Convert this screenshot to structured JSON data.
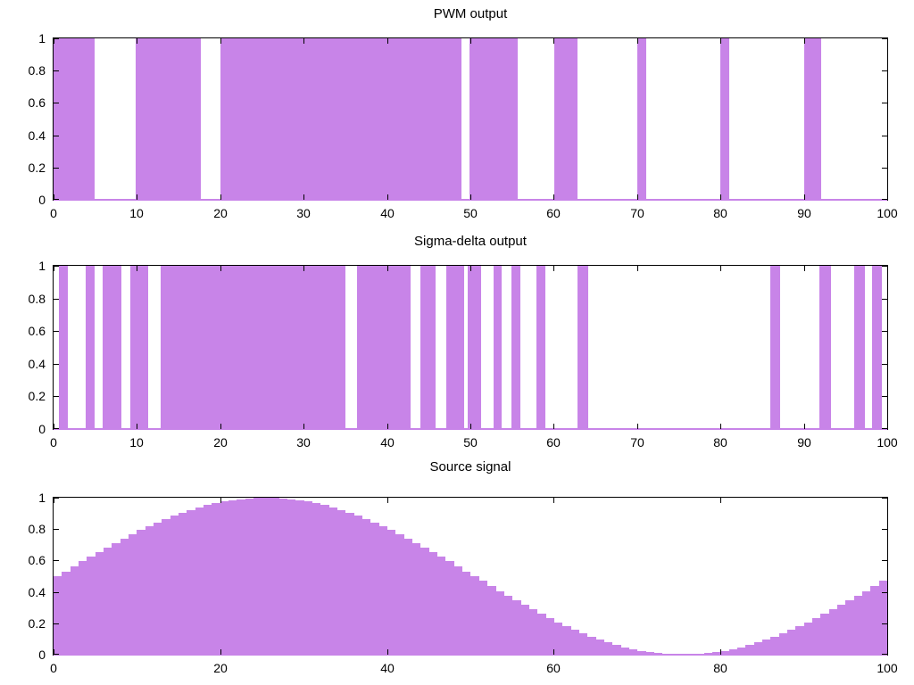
{
  "figure": {
    "background": "#ffffff",
    "fill_color": "#C884E8",
    "border_color": "#000000",
    "text_color": "#000000"
  },
  "chart_data": [
    {
      "id": "pwm",
      "type": "bar",
      "title": "PWM output",
      "xlabel": "",
      "ylabel": "",
      "xlim": [
        0,
        100
      ],
      "ylim": [
        0,
        1
      ],
      "grid": false,
      "legend": "none",
      "x_ticks": [
        0,
        10,
        20,
        30,
        40,
        50,
        60,
        70,
        80,
        90,
        100
      ],
      "y_ticks": [
        0,
        0.2,
        0.4,
        0.6,
        0.8,
        1
      ],
      "y_tick_labels": [
        "0",
        "0.2",
        "0.4",
        "0.6",
        "0.8",
        "1"
      ],
      "signal_kind": "binary-pulse-train",
      "pulse_level": 1,
      "pulses": [
        [
          0,
          4.9
        ],
        [
          9.9,
          17.7
        ],
        [
          20,
          48.9
        ],
        [
          49.9,
          55.7
        ],
        [
          60.1,
          62.8
        ],
        [
          70,
          71.1
        ],
        [
          80,
          81
        ],
        [
          90,
          92.1
        ]
      ]
    },
    {
      "id": "sigma-delta",
      "type": "bar",
      "title": "Sigma-delta output",
      "xlabel": "",
      "ylabel": "",
      "xlim": [
        0,
        100
      ],
      "ylim": [
        0,
        1
      ],
      "grid": false,
      "legend": "none",
      "x_ticks": [
        0,
        10,
        20,
        30,
        40,
        50,
        60,
        70,
        80,
        90,
        100
      ],
      "y_ticks": [
        0,
        0.2,
        0.4,
        0.6,
        0.8,
        1
      ],
      "y_tick_labels": [
        "0",
        "0.2",
        "0.4",
        "0.6",
        "0.8",
        "1"
      ],
      "signal_kind": "binary-pulse-train",
      "pulse_level": 1,
      "pulses": [
        [
          0.6,
          1.7
        ],
        [
          3.9,
          4.9
        ],
        [
          5.9,
          8.1
        ],
        [
          9.2,
          11.4
        ],
        [
          12.9,
          35.0
        ],
        [
          36.4,
          42.8
        ],
        [
          44.0,
          45.8
        ],
        [
          47.1,
          49.2
        ],
        [
          49.7,
          51.3
        ],
        [
          52.8,
          53.8
        ],
        [
          54.9,
          56.0
        ],
        [
          57.9,
          59.0
        ],
        [
          62.9,
          64.1
        ],
        [
          86.0,
          87.2
        ],
        [
          91.9,
          93.3
        ],
        [
          96.0,
          97.3
        ],
        [
          98.2,
          99.4
        ]
      ]
    },
    {
      "id": "source",
      "type": "bar",
      "title": "Source signal",
      "xlabel": "",
      "ylabel": "",
      "xlim": [
        0,
        100
      ],
      "ylim": [
        0,
        1
      ],
      "grid": false,
      "legend": "none",
      "x_ticks": [
        0,
        20,
        40,
        60,
        80,
        100
      ],
      "y_ticks": [
        0,
        0.2,
        0.4,
        0.6,
        0.8,
        1
      ],
      "y_tick_labels": [
        "0",
        "0.2",
        "0.4",
        "0.6",
        "0.8",
        "1"
      ],
      "signal_kind": "staircase-sine",
      "bar_width": 1,
      "x_start": 0,
      "values": [
        0.5,
        0.531,
        0.563,
        0.594,
        0.624,
        0.655,
        0.684,
        0.713,
        0.741,
        0.768,
        0.794,
        0.819,
        0.842,
        0.864,
        0.885,
        0.905,
        0.922,
        0.938,
        0.952,
        0.965,
        0.976,
        0.984,
        0.991,
        0.996,
        0.999,
        1.0,
        0.999,
        0.996,
        0.991,
        0.984,
        0.976,
        0.965,
        0.952,
        0.938,
        0.922,
        0.905,
        0.885,
        0.864,
        0.842,
        0.819,
        0.794,
        0.768,
        0.741,
        0.713,
        0.684,
        0.655,
        0.624,
        0.594,
        0.563,
        0.531,
        0.5,
        0.469,
        0.437,
        0.406,
        0.376,
        0.345,
        0.316,
        0.287,
        0.259,
        0.232,
        0.206,
        0.181,
        0.158,
        0.135,
        0.115,
        0.095,
        0.078,
        0.062,
        0.048,
        0.035,
        0.024,
        0.016,
        0.009,
        0.004,
        0.001,
        0.0,
        0.001,
        0.004,
        0.009,
        0.016,
        0.024,
        0.035,
        0.048,
        0.062,
        0.078,
        0.095,
        0.115,
        0.135,
        0.158,
        0.181,
        0.206,
        0.232,
        0.259,
        0.287,
        0.316,
        0.345,
        0.376,
        0.406,
        0.437,
        0.469
      ]
    }
  ]
}
